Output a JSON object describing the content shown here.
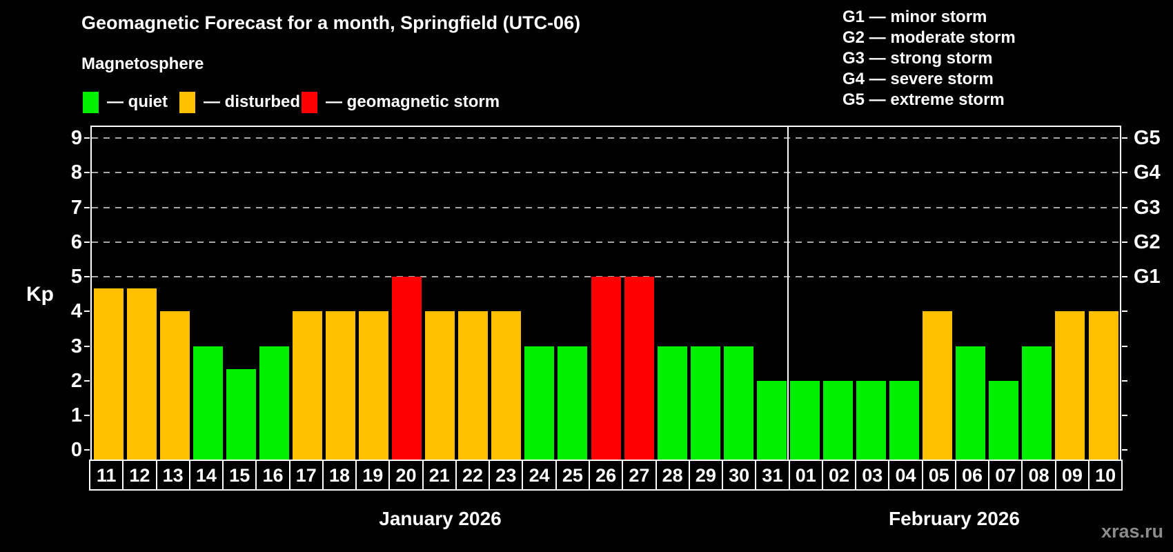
{
  "title": "Geomagnetic Forecast for a month, Springfield (UTC-06)",
  "subtitle": "Magnetosphere",
  "legend": {
    "items": [
      {
        "status": "quiet",
        "label": "— quiet"
      },
      {
        "status": "disturbed",
        "label": "— disturbed"
      },
      {
        "status": "storm",
        "label": "— geomagnetic storm"
      }
    ]
  },
  "g_legend": [
    "G1 — minor storm",
    "G2 — moderate storm",
    "G3 — strong storm",
    "G4 — severe storm",
    "G5 — extreme storm"
  ],
  "colors": {
    "quiet": "#00ee00",
    "disturbed": "#ffc000",
    "storm": "#ff0000",
    "axis": "#ffffff",
    "grid": "#a8a8a8",
    "background": "#000000",
    "watermark": "#8c8c8c"
  },
  "watermark": "xras.ru",
  "chart_data": {
    "type": "bar",
    "title": "Geomagnetic Forecast for a month, Springfield (UTC-06)",
    "xlabel": "",
    "ylabel": "Kp",
    "ylim": [
      0,
      9.35
    ],
    "yticks": [
      0,
      1,
      2,
      3,
      4,
      5,
      6,
      7,
      8,
      9
    ],
    "grid": "dashed horizontal lines at Kp 5-9 only",
    "legend_position": "top-left",
    "right_axis": [
      {
        "kp": 5,
        "label": "G1"
      },
      {
        "kp": 6,
        "label": "G2"
      },
      {
        "kp": 7,
        "label": "G3"
      },
      {
        "kp": 8,
        "label": "G4"
      },
      {
        "kp": 9,
        "label": "G5"
      }
    ],
    "months": [
      {
        "label": "January 2026",
        "bar_count": 21
      },
      {
        "label": "February 2026",
        "bar_count": 10
      }
    ],
    "bars": [
      {
        "day": "11",
        "value": 4.67,
        "status": "disturbed"
      },
      {
        "day": "12",
        "value": 4.67,
        "status": "disturbed"
      },
      {
        "day": "13",
        "value": 4,
        "status": "disturbed"
      },
      {
        "day": "14",
        "value": 3,
        "status": "quiet"
      },
      {
        "day": "15",
        "value": 2.33,
        "status": "quiet"
      },
      {
        "day": "16",
        "value": 3,
        "status": "quiet"
      },
      {
        "day": "17",
        "value": 4,
        "status": "disturbed"
      },
      {
        "day": "18",
        "value": 4,
        "status": "disturbed"
      },
      {
        "day": "19",
        "value": 4,
        "status": "disturbed"
      },
      {
        "day": "20",
        "value": 5,
        "status": "storm"
      },
      {
        "day": "21",
        "value": 4,
        "status": "disturbed"
      },
      {
        "day": "22",
        "value": 4,
        "status": "disturbed"
      },
      {
        "day": "23",
        "value": 4,
        "status": "disturbed"
      },
      {
        "day": "24",
        "value": 3,
        "status": "quiet"
      },
      {
        "day": "25",
        "value": 3,
        "status": "quiet"
      },
      {
        "day": "26",
        "value": 5,
        "status": "storm"
      },
      {
        "day": "27",
        "value": 5,
        "status": "storm"
      },
      {
        "day": "28",
        "value": 3,
        "status": "quiet"
      },
      {
        "day": "29",
        "value": 3,
        "status": "quiet"
      },
      {
        "day": "30",
        "value": 3,
        "status": "quiet"
      },
      {
        "day": "31",
        "value": 2,
        "status": "quiet"
      },
      {
        "day": "01",
        "value": 2,
        "status": "quiet"
      },
      {
        "day": "02",
        "value": 2,
        "status": "quiet"
      },
      {
        "day": "03",
        "value": 2,
        "status": "quiet"
      },
      {
        "day": "04",
        "value": 2,
        "status": "quiet"
      },
      {
        "day": "05",
        "value": 4,
        "status": "disturbed"
      },
      {
        "day": "06",
        "value": 3,
        "status": "quiet"
      },
      {
        "day": "07",
        "value": 2,
        "status": "quiet"
      },
      {
        "day": "08",
        "value": 3,
        "status": "quiet"
      },
      {
        "day": "09",
        "value": 4,
        "status": "disturbed"
      },
      {
        "day": "10",
        "value": 4,
        "status": "disturbed"
      }
    ]
  }
}
